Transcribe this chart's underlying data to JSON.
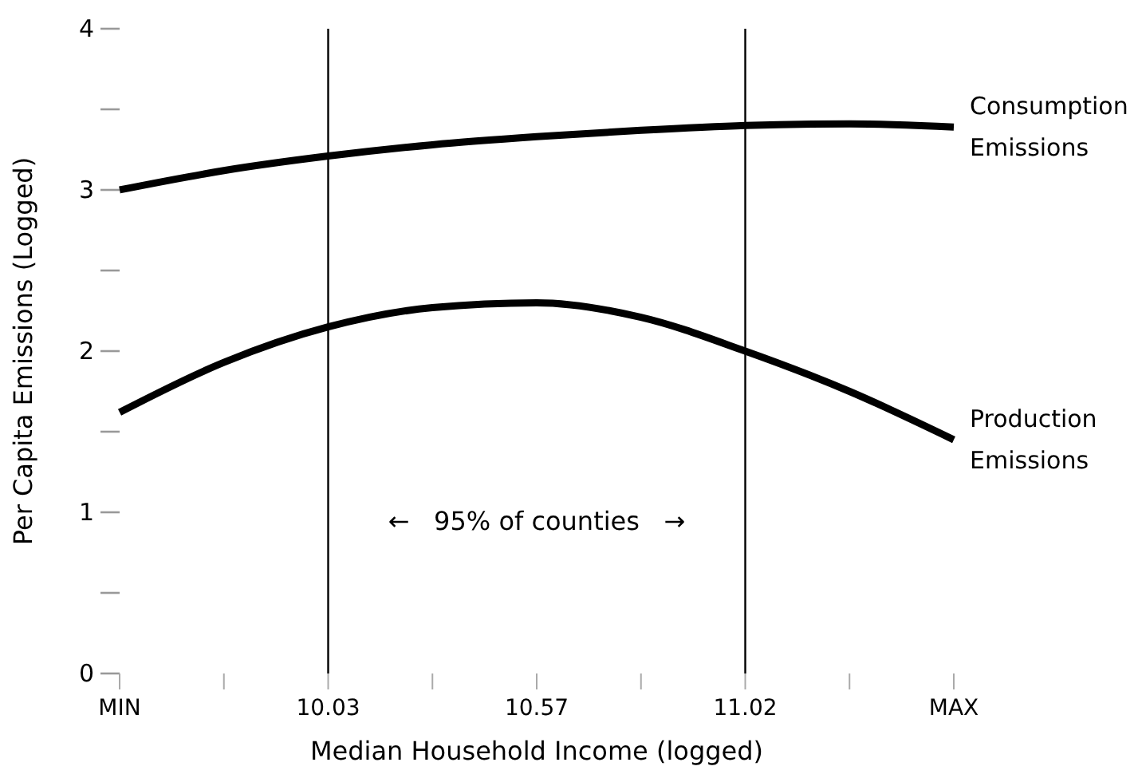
{
  "chart_data": {
    "type": "line",
    "xlabel": "Median Household Income (logged)",
    "ylabel": "Per Capita Emissions (Logged)",
    "categories": [
      "MIN",
      null,
      "10.03",
      null,
      "10.57",
      null,
      "11.02",
      null,
      "MAX"
    ],
    "ylim": [
      0,
      4
    ],
    "yticks": [
      0,
      1,
      2,
      3,
      4
    ],
    "legend": false,
    "line_style": "solid",
    "marker": "none",
    "series": [
      {
        "name": "Consumption Emissions",
        "color": "#000000",
        "values": [
          3.0,
          3.12,
          3.21,
          3.28,
          3.33,
          3.37,
          3.4,
          3.41,
          3.39
        ]
      },
      {
        "name": "Production Emissions",
        "color": "#000000",
        "values": [
          1.62,
          1.93,
          2.15,
          2.27,
          2.3,
          2.21,
          2.0,
          1.75,
          1.45
        ]
      }
    ],
    "ref_lines": [
      {
        "axis": "x",
        "value": "10.03",
        "label": null
      },
      {
        "axis": "x",
        "value": "11.02",
        "label": null
      }
    ],
    "annotations": [
      "←   95% of counties   →"
    ]
  }
}
